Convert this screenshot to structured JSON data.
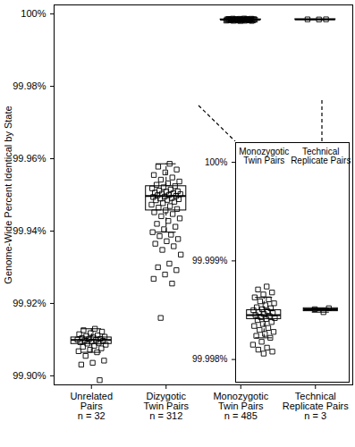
{
  "chart_data": [
    {
      "type": "box",
      "y_label": "Genome-Wide Percent Identical by State",
      "categories": [
        "Unrelated\nPairs",
        "Dizygotic\nTwin Pairs",
        "Monozygotic\nTwin Pairs",
        "Technical\nReplicate Pairs"
      ],
      "n_labels": [
        "n = 32",
        "n = 312",
        "n = 485",
        "n = 3"
      ],
      "ylim": [
        99.8975,
        100.0025
      ],
      "yticks": [
        {
          "value": 99.9,
          "label": "99.90%"
        },
        {
          "value": 99.92,
          "label": "99.92%"
        },
        {
          "value": 99.94,
          "label": "99.94%"
        },
        {
          "value": 99.96,
          "label": "99.96%"
        },
        {
          "value": 99.98,
          "label": "99.98%"
        },
        {
          "value": 100,
          "label": "100%"
        }
      ],
      "marker": "square",
      "color": "#000000",
      "groups": [
        {
          "q1": 99.9088,
          "median": 99.9099,
          "q3": 99.9106,
          "whisker_low": 99.9065,
          "whisker_high": 99.913,
          "points": [
            99.913,
            99.9126,
            99.9122,
            99.9118,
            99.9115,
            99.9112,
            99.911,
            99.9108,
            99.9106,
            99.9104,
            99.9102,
            99.9101,
            99.91,
            99.9099,
            99.9098,
            99.9097,
            99.9095,
            99.9093,
            99.9091,
            99.9089,
            99.9086,
            99.9083,
            99.908,
            99.9076,
            99.9072,
            99.9068,
            99.9065,
            99.9055,
            99.9042,
            99.9036,
            99.9031,
            99.8988
          ]
        },
        {
          "q1": 99.9457,
          "median": 99.9497,
          "q3": 99.9524,
          "whisker_low": 99.9397,
          "whisker_high": 99.9586,
          "points": [
            99.9586,
            99.9578,
            99.957,
            99.9562,
            99.9555,
            99.9548,
            99.9542,
            99.9537,
            99.9532,
            99.9528,
            99.9524,
            99.9521,
            99.9518,
            99.9515,
            99.9512,
            99.951,
            99.9509,
            99.9506,
            99.9505,
            99.9503,
            99.9502,
            99.95,
            99.9499,
            99.9497,
            99.9495,
            99.9494,
            99.9491,
            99.949,
            99.9488,
            99.9486,
            99.9485,
            99.9481,
            99.9477,
            99.9473,
            99.9469,
            99.9465,
            99.9461,
            99.9457,
            99.9452,
            99.9447,
            99.9441,
            99.9435,
            99.9428,
            99.942,
            99.9412,
            99.9405,
            99.9397,
            99.939,
            99.9386,
            99.9378,
            99.9372,
            99.9365,
            99.9358,
            99.9348,
            99.9335,
            99.931,
            99.93,
            99.9292,
            99.928,
            99.9268,
            99.9255,
            99.916
          ]
        },
        {
          "q1": 99.99841,
          "median": 99.99845,
          "q3": 99.9985,
          "whisker_low": 99.99822,
          "whisker_high": 99.99863,
          "points": [
            99.99874,
            99.99871,
            99.99868,
            99.99866,
            99.99863,
            99.99861,
            99.99859,
            99.99857,
            99.99855,
            99.99853,
            99.99852,
            99.99851,
            99.9985,
            99.99849,
            99.99848,
            99.99847,
            99.99846,
            99.99845,
            99.99844,
            99.99843,
            99.99842,
            99.99841,
            99.9984,
            99.99838,
            99.99836,
            99.99834,
            99.99832,
            99.9983,
            99.99828,
            99.99826,
            99.99824,
            99.99822,
            99.99818,
            99.99815,
            99.99812,
            99.9981,
            99.99808,
            99.99806
          ]
        },
        {
          "q1": 99.99849,
          "median": 99.99851,
          "q3": 99.99852,
          "whisker_low": 99.99848,
          "whisker_high": 99.99852,
          "points": [
            99.99848,
            99.99851,
            99.99852
          ]
        }
      ]
    },
    {
      "type": "box",
      "categories": [
        "Monozygotic\nTwin Pairs",
        "Technical\nReplicate Pairs"
      ],
      "ylim": [
        99.99777,
        100.0002
      ],
      "yticks": [
        {
          "value": 99.998,
          "label": "99.998%"
        },
        {
          "value": 99.999,
          "label": "99.999%"
        },
        {
          "value": 100,
          "label": "100%"
        }
      ],
      "marker": "square",
      "color": "#000000",
      "groups": [
        {
          "q1": 99.99841,
          "median": 99.99845,
          "q3": 99.9985,
          "whisker_low": 99.99822,
          "whisker_high": 99.99863,
          "points": [
            99.99874,
            99.99871,
            99.99868,
            99.99866,
            99.99863,
            99.99861,
            99.99859,
            99.99857,
            99.99855,
            99.99853,
            99.99852,
            99.99851,
            99.9985,
            99.99849,
            99.99848,
            99.99847,
            99.99846,
            99.99845,
            99.99844,
            99.99843,
            99.99842,
            99.99841,
            99.9984,
            99.99838,
            99.99836,
            99.99834,
            99.99832,
            99.9983,
            99.99828,
            99.99826,
            99.99824,
            99.99822,
            99.99818,
            99.99815,
            99.99812,
            99.9981,
            99.99808,
            99.99806
          ]
        },
        {
          "q1": 99.99849,
          "median": 99.99851,
          "q3": 99.99852,
          "whisker_low": 99.99848,
          "whisker_high": 99.99852,
          "points": [
            99.99848,
            99.99851,
            99.99852
          ]
        }
      ]
    }
  ]
}
